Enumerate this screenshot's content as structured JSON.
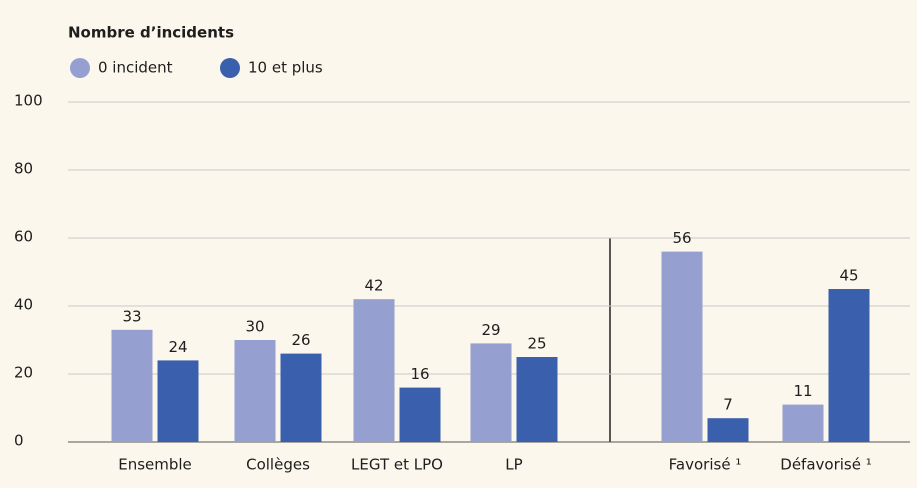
{
  "chart_data": {
    "type": "bar",
    "legend_title": "Nombre d’incidents",
    "categories": [
      "Ensemble",
      "Collèges",
      "LEGT et LPO",
      "LP",
      "Favorisé ¹",
      "Défavorisé ¹"
    ],
    "series": [
      {
        "name": "0 incident",
        "color": "#959fd0",
        "values": [
          33,
          30,
          42,
          29,
          56,
          11
        ]
      },
      {
        "name": "10 et plus",
        "color": "#3a5fad",
        "values": [
          24,
          26,
          16,
          25,
          7,
          45
        ]
      }
    ],
    "ylim": [
      0,
      100
    ],
    "yticks": [
      0,
      20,
      40,
      60,
      80,
      100
    ],
    "grid": true
  }
}
